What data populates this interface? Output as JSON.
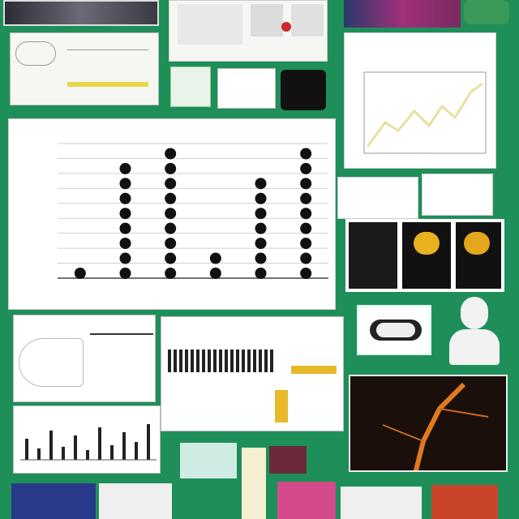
{
  "colors": {
    "background": "#1f8f5a",
    "dot": "#111111",
    "line_series": "#e8e0a0",
    "vein": "#e07a1e"
  },
  "chart_data": {
    "type": "scatter",
    "title": "",
    "xlabel": "",
    "ylabel": "",
    "categories": [
      "",
      "",
      "",
      "",
      "",
      ""
    ],
    "values": [
      1,
      8,
      9,
      2,
      7,
      9
    ],
    "ylim": [
      0,
      9
    ],
    "yticks": [
      0,
      1,
      2,
      3,
      4,
      5,
      6,
      7,
      8,
      9
    ],
    "grid": true
  }
}
